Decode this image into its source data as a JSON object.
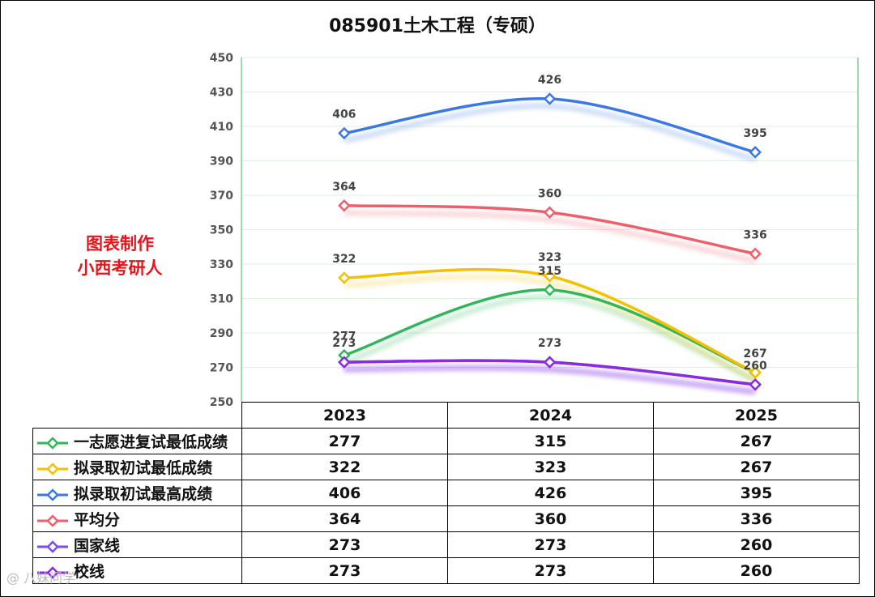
{
  "chart_data": {
    "type": "line",
    "title": "085901土木工程（专硕）",
    "categories": [
      "2023",
      "2024",
      "2025"
    ],
    "ylim": [
      250,
      450
    ],
    "yticks": [
      250,
      270,
      290,
      310,
      330,
      350,
      370,
      390,
      410,
      430,
      450
    ],
    "grid": true,
    "legend": "bottom data table",
    "series": [
      {
        "name": "一志愿进复试最低成绩",
        "values": [
          277,
          315,
          267
        ],
        "color": "#2fb75a"
      },
      {
        "name": "拟录取初试最低成绩",
        "values": [
          322,
          323,
          267
        ],
        "color": "#f5c000"
      },
      {
        "name": "拟录取初试最高成绩",
        "values": [
          406,
          426,
          395
        ],
        "color": "#3b78e7"
      },
      {
        "name": "平均分",
        "values": [
          364,
          360,
          336
        ],
        "color": "#ef5f6b"
      },
      {
        "name": "国家线",
        "values": [
          273,
          273,
          260
        ],
        "color": "#7b4cf0"
      },
      {
        "name": "校线",
        "values": [
          273,
          273,
          260
        ],
        "color": "#8a2be2"
      }
    ]
  },
  "watermark": {
    "line1": "图表制作",
    "line2": "小西考研人"
  },
  "footer_mark": "@ 八妹问学"
}
